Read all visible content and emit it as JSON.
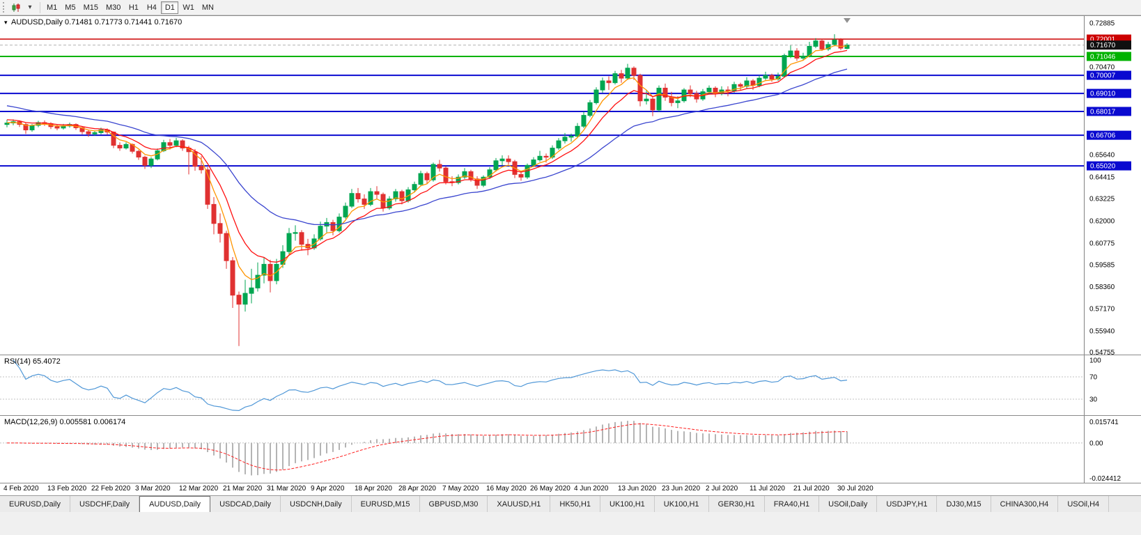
{
  "toolbar": {
    "caret_glyph": "▾",
    "timeframes": [
      {
        "label": "M1",
        "active": false
      },
      {
        "label": "M5",
        "active": false
      },
      {
        "label": "M15",
        "active": false
      },
      {
        "label": "M30",
        "active": false
      },
      {
        "label": "H1",
        "active": false
      },
      {
        "label": "H4",
        "active": false
      },
      {
        "label": "D1",
        "active": true
      },
      {
        "label": "W1",
        "active": false
      },
      {
        "label": "MN",
        "active": false
      }
    ]
  },
  "chart": {
    "collapse_glyph": "▾",
    "title": "AUDUSD,Daily",
    "ohlc_text": "0.71481 0.71773 0.71441 0.71670"
  },
  "indicator_panels": {
    "rsi_label": "RSI(14)",
    "rsi_value": "65.4072",
    "macd_label": "MACD(12,26,9)",
    "macd_values": "0.005581 0.006174"
  },
  "colors": {
    "candle_up": "#00a651",
    "candle_down": "#e03131",
    "ma_fast": "#ff9500",
    "ma_mid": "#ff1111",
    "ma_slow": "#3a45cf",
    "rsi_line": "#4f97d7",
    "macd_hist": "#b4b4b4",
    "macd_signal": "#ff2020",
    "level_dash": "#c0c0c0",
    "axis_text": "#000000",
    "current_badge": "#101010",
    "bid_line": "#b0b0b0"
  },
  "chart_data": {
    "type": "candlestick",
    "symbol": "AUDUSD",
    "timeframe": "Daily",
    "current_ohlc": {
      "open": 0.71481,
      "high": 0.71773,
      "low": 0.71441,
      "close": 0.7167
    },
    "y_range": [
      0.5463,
      0.7327
    ],
    "y_axis_labels": [
      "0.72885",
      "0.70470",
      "0.65640",
      "0.64415",
      "0.63225",
      "0.62000",
      "0.60775",
      "0.59585",
      "0.58360",
      "0.57170",
      "0.55940",
      "0.54755"
    ],
    "x_tick_step": 7,
    "x_tick_labels": [
      "4 Feb 2020",
      "13 Feb 2020",
      "22 Feb 2020",
      "3 Mar 2020",
      "12 Mar 2020",
      "21 Mar 2020",
      "31 Mar 2020",
      "9 Apr 2020",
      "18 Apr 2020",
      "28 Apr 2020",
      "7 May 2020",
      "16 May 2020",
      "26 May 2020",
      "4 Jun 2020",
      "13 Jun 2020",
      "23 Jun 2020",
      "2 Jul 2020",
      "11 Jul 2020",
      "21 Jul 2020",
      "30 Jul 2020"
    ],
    "horizontal_lines": [
      {
        "label": "0.72001",
        "price": 0.72001,
        "color": "#cc0000",
        "width": 1.5
      },
      {
        "label": "0.71046",
        "price": 0.71046,
        "color": "#00b200",
        "width": 2
      },
      {
        "label": "0.70007",
        "price": 0.70007,
        "color": "#0a0ad0",
        "width": 2
      },
      {
        "label": "0.69010",
        "price": 0.6901,
        "color": "#0a0ad0",
        "width": 2
      },
      {
        "label": "0.68017",
        "price": 0.68017,
        "color": "#0a0ad0",
        "width": 2
      },
      {
        "label": "0.66706",
        "price": 0.66706,
        "color": "#0a0ad0",
        "width": 2
      },
      {
        "label": "0.65020",
        "price": 0.6502,
        "color": "#0a0ad0",
        "width": 2
      }
    ],
    "current_price": {
      "label": "0.71670",
      "price": 0.7167
    },
    "moving_averages": [
      {
        "name": "fast",
        "period": 5,
        "seed": 0.674,
        "color_key": "ma_fast"
      },
      {
        "name": "mid",
        "period": 10,
        "seed": 0.676,
        "color_key": "ma_mid"
      },
      {
        "name": "slow",
        "period": 28,
        "seed": 0.684,
        "color_key": "ma_slow"
      }
    ],
    "indicators": [
      {
        "name": "RSI",
        "period": 14,
        "current": 65.4072,
        "levels": [
          70,
          30
        ],
        "axis_labels": [
          "100",
          "70",
          "30"
        ]
      },
      {
        "name": "MACD",
        "fast": 12,
        "slow": 26,
        "signal": 9,
        "current": [
          0.005581,
          0.006174
        ],
        "axis_labels": [
          "0.015741",
          "0.00",
          "-0.024412"
        ],
        "axis_range": [
          -0.024412,
          0.015741
        ]
      }
    ],
    "candles_ohlc": [
      [
        0.673,
        0.6756,
        0.6714,
        0.6738
      ],
      [
        0.6738,
        0.6758,
        0.6726,
        0.6745
      ],
      [
        0.6745,
        0.6752,
        0.6716,
        0.673
      ],
      [
        0.673,
        0.6738,
        0.6678,
        0.67
      ],
      [
        0.67,
        0.6732,
        0.669,
        0.6725
      ],
      [
        0.6725,
        0.675,
        0.6715,
        0.674
      ],
      [
        0.674,
        0.6752,
        0.6722,
        0.6735
      ],
      [
        0.6735,
        0.6742,
        0.6705,
        0.6718
      ],
      [
        0.6718,
        0.673,
        0.6698,
        0.671
      ],
      [
        0.671,
        0.6733,
        0.6702,
        0.6722
      ],
      [
        0.6722,
        0.674,
        0.6712,
        0.673
      ],
      [
        0.673,
        0.6736,
        0.67,
        0.6712
      ],
      [
        0.6712,
        0.672,
        0.6676,
        0.669
      ],
      [
        0.669,
        0.6702,
        0.6662,
        0.6678
      ],
      [
        0.6678,
        0.6696,
        0.6668,
        0.6685
      ],
      [
        0.6685,
        0.6712,
        0.6676,
        0.67
      ],
      [
        0.67,
        0.6708,
        0.6674,
        0.6688
      ],
      [
        0.6688,
        0.6692,
        0.66,
        0.6615
      ],
      [
        0.6615,
        0.6632,
        0.6585,
        0.66
      ],
      [
        0.66,
        0.6632,
        0.6592,
        0.662
      ],
      [
        0.662,
        0.6625,
        0.657,
        0.6582
      ],
      [
        0.6582,
        0.659,
        0.6535,
        0.655
      ],
      [
        0.655,
        0.6558,
        0.6485,
        0.6505
      ],
      [
        0.6505,
        0.655,
        0.649,
        0.654
      ],
      [
        0.654,
        0.6598,
        0.6532,
        0.6585
      ],
      [
        0.6585,
        0.6645,
        0.6578,
        0.663
      ],
      [
        0.663,
        0.665,
        0.6592,
        0.6615
      ],
      [
        0.6615,
        0.6656,
        0.6605,
        0.664
      ],
      [
        0.664,
        0.6648,
        0.6585,
        0.66
      ],
      [
        0.66,
        0.6612,
        0.6455,
        0.658
      ],
      [
        0.658,
        0.6595,
        0.6475,
        0.65
      ],
      [
        0.65,
        0.6555,
        0.646,
        0.648
      ],
      [
        0.648,
        0.6495,
        0.6265,
        0.629
      ],
      [
        0.629,
        0.633,
        0.6125,
        0.6185
      ],
      [
        0.6185,
        0.624,
        0.608,
        0.613
      ],
      [
        0.613,
        0.6145,
        0.5935,
        0.598
      ],
      [
        0.598,
        0.6,
        0.572,
        0.579
      ],
      [
        0.579,
        0.581,
        0.551,
        0.574
      ],
      [
        0.574,
        0.5875,
        0.57,
        0.58
      ],
      [
        0.58,
        0.5935,
        0.5745,
        0.583
      ],
      [
        0.583,
        0.597,
        0.581,
        0.59
      ],
      [
        0.59,
        0.6,
        0.5855,
        0.596
      ],
      [
        0.596,
        0.5985,
        0.5805,
        0.587
      ],
      [
        0.587,
        0.599,
        0.585,
        0.596
      ],
      [
        0.596,
        0.6065,
        0.594,
        0.603
      ],
      [
        0.603,
        0.616,
        0.6015,
        0.613
      ],
      [
        0.613,
        0.6175,
        0.609,
        0.6135
      ],
      [
        0.6135,
        0.6148,
        0.6035,
        0.607
      ],
      [
        0.607,
        0.61,
        0.601,
        0.605
      ],
      [
        0.605,
        0.6125,
        0.604,
        0.61
      ],
      [
        0.61,
        0.6195,
        0.609,
        0.617
      ],
      [
        0.617,
        0.6215,
        0.6135,
        0.619
      ],
      [
        0.619,
        0.6205,
        0.612,
        0.6145
      ],
      [
        0.6145,
        0.624,
        0.6135,
        0.622
      ],
      [
        0.622,
        0.63,
        0.621,
        0.628
      ],
      [
        0.628,
        0.6375,
        0.627,
        0.635
      ],
      [
        0.635,
        0.638,
        0.63,
        0.632
      ],
      [
        0.632,
        0.6345,
        0.6265,
        0.629
      ],
      [
        0.629,
        0.638,
        0.628,
        0.636
      ],
      [
        0.636,
        0.639,
        0.632,
        0.6345
      ],
      [
        0.6345,
        0.6355,
        0.625,
        0.627
      ],
      [
        0.627,
        0.6335,
        0.626,
        0.632
      ],
      [
        0.632,
        0.6375,
        0.6305,
        0.636
      ],
      [
        0.636,
        0.637,
        0.629,
        0.631
      ],
      [
        0.631,
        0.6385,
        0.63,
        0.637
      ],
      [
        0.637,
        0.6415,
        0.6355,
        0.64
      ],
      [
        0.64,
        0.6475,
        0.639,
        0.646
      ],
      [
        0.646,
        0.647,
        0.6405,
        0.6425
      ],
      [
        0.6425,
        0.652,
        0.6415,
        0.651
      ],
      [
        0.651,
        0.6535,
        0.647,
        0.649
      ],
      [
        0.649,
        0.65,
        0.64,
        0.6415
      ],
      [
        0.6415,
        0.6445,
        0.639,
        0.641
      ],
      [
        0.641,
        0.6455,
        0.64,
        0.644
      ],
      [
        0.644,
        0.649,
        0.643,
        0.647
      ],
      [
        0.647,
        0.648,
        0.6415,
        0.643
      ],
      [
        0.643,
        0.6445,
        0.6375,
        0.6395
      ],
      [
        0.6395,
        0.645,
        0.6385,
        0.644
      ],
      [
        0.644,
        0.6495,
        0.643,
        0.648
      ],
      [
        0.648,
        0.6545,
        0.647,
        0.653
      ],
      [
        0.653,
        0.656,
        0.6505,
        0.654
      ],
      [
        0.654,
        0.656,
        0.651,
        0.6525
      ],
      [
        0.6525,
        0.6535,
        0.6435,
        0.6455
      ],
      [
        0.6455,
        0.6475,
        0.642,
        0.644
      ],
      [
        0.644,
        0.6515,
        0.643,
        0.6505
      ],
      [
        0.6505,
        0.655,
        0.6495,
        0.6535
      ],
      [
        0.6535,
        0.6585,
        0.6525,
        0.6555
      ],
      [
        0.6555,
        0.657,
        0.652,
        0.655
      ],
      [
        0.655,
        0.6615,
        0.654,
        0.66
      ],
      [
        0.66,
        0.6655,
        0.659,
        0.664
      ],
      [
        0.664,
        0.6683,
        0.6625,
        0.666
      ],
      [
        0.666,
        0.668,
        0.6635,
        0.6665
      ],
      [
        0.6665,
        0.6738,
        0.6655,
        0.672
      ],
      [
        0.672,
        0.68,
        0.671,
        0.678
      ],
      [
        0.678,
        0.6865,
        0.677,
        0.685
      ],
      [
        0.685,
        0.6935,
        0.684,
        0.692
      ],
      [
        0.692,
        0.6988,
        0.6905,
        0.697
      ],
      [
        0.697,
        0.6995,
        0.692,
        0.696
      ],
      [
        0.696,
        0.7025,
        0.695,
        0.701
      ],
      [
        0.701,
        0.703,
        0.696,
        0.6985
      ],
      [
        0.6985,
        0.7064,
        0.6975,
        0.704
      ],
      [
        0.704,
        0.705,
        0.6975,
        0.7
      ],
      [
        0.7,
        0.701,
        0.683,
        0.686
      ],
      [
        0.686,
        0.692,
        0.684,
        0.687
      ],
      [
        0.687,
        0.688,
        0.6776,
        0.681
      ],
      [
        0.681,
        0.6945,
        0.68,
        0.693
      ],
      [
        0.693,
        0.6955,
        0.686,
        0.688
      ],
      [
        0.688,
        0.691,
        0.683,
        0.685
      ],
      [
        0.685,
        0.6885,
        0.682,
        0.686
      ],
      [
        0.686,
        0.693,
        0.685,
        0.692
      ],
      [
        0.692,
        0.6945,
        0.688,
        0.69
      ],
      [
        0.69,
        0.6915,
        0.685,
        0.687
      ],
      [
        0.687,
        0.6925,
        0.686,
        0.691
      ],
      [
        0.691,
        0.6945,
        0.6895,
        0.693
      ],
      [
        0.693,
        0.694,
        0.688,
        0.69
      ],
      [
        0.69,
        0.694,
        0.689,
        0.692
      ],
      [
        0.692,
        0.694,
        0.6885,
        0.6915
      ],
      [
        0.6915,
        0.6965,
        0.6905,
        0.695
      ],
      [
        0.695,
        0.696,
        0.692,
        0.694
      ],
      [
        0.694,
        0.699,
        0.693,
        0.697
      ],
      [
        0.697,
        0.698,
        0.692,
        0.6945
      ],
      [
        0.6945,
        0.7,
        0.6935,
        0.6985
      ],
      [
        0.6985,
        0.702,
        0.6975,
        0.7
      ],
      [
        0.7,
        0.701,
        0.6965,
        0.698
      ],
      [
        0.698,
        0.7015,
        0.697,
        0.6995
      ],
      [
        0.6995,
        0.712,
        0.699,
        0.711
      ],
      [
        0.711,
        0.7165,
        0.7095,
        0.7135
      ],
      [
        0.7135,
        0.715,
        0.708,
        0.7095
      ],
      [
        0.7095,
        0.7125,
        0.7085,
        0.7105
      ],
      [
        0.7105,
        0.7185,
        0.71,
        0.716
      ],
      [
        0.716,
        0.7205,
        0.715,
        0.719
      ],
      [
        0.719,
        0.72,
        0.7135,
        0.7145
      ],
      [
        0.7145,
        0.7185,
        0.7135,
        0.717
      ],
      [
        0.717,
        0.7227,
        0.716,
        0.7195
      ],
      [
        0.7195,
        0.7205,
        0.714,
        0.715
      ],
      [
        0.71481,
        0.71773,
        0.71441,
        0.7167
      ]
    ]
  },
  "tabs": [
    {
      "label": "EURUSD,Daily",
      "active": false
    },
    {
      "label": "USDCHF,Daily",
      "active": false
    },
    {
      "label": "AUDUSD,Daily",
      "active": true
    },
    {
      "label": "USDCAD,Daily",
      "active": false
    },
    {
      "label": "USDCNH,Daily",
      "active": false
    },
    {
      "label": "EURUSD,M15",
      "active": false
    },
    {
      "label": "GBPUSD,M30",
      "active": false
    },
    {
      "label": "XAUUSD,H1",
      "active": false
    },
    {
      "label": "HK50,H1",
      "active": false
    },
    {
      "label": "UK100,H1",
      "active": false
    },
    {
      "label": "UK100,H1",
      "active": false
    },
    {
      "label": "GER30,H1",
      "active": false
    },
    {
      "label": "FRA40,H1",
      "active": false
    },
    {
      "label": "USOil,Daily",
      "active": false
    },
    {
      "label": "USDJPY,H1",
      "active": false
    },
    {
      "label": "DJ30,M15",
      "active": false
    },
    {
      "label": "CHINA300,H4",
      "active": false
    },
    {
      "label": "USOil,H4",
      "active": false
    }
  ]
}
